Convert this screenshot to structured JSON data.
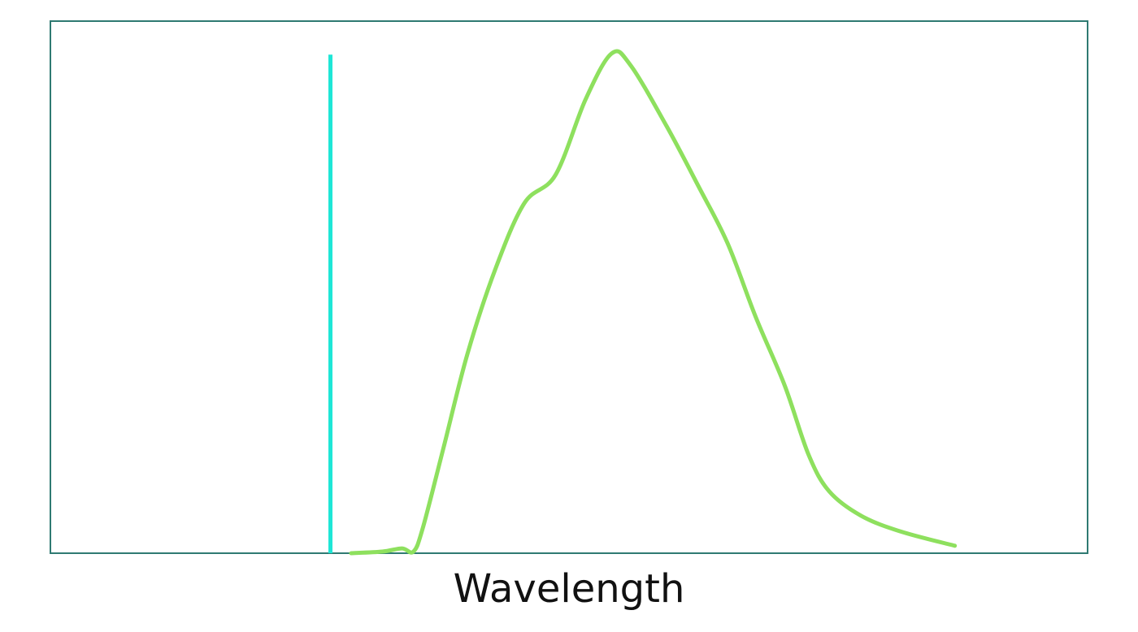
{
  "chart_data": {
    "type": "line",
    "xlabel": "Wavelength",
    "xlim": [
      0,
      100
    ],
    "ylim": [
      0,
      100
    ],
    "frame_color": "#2f7a72",
    "x": [
      29.0,
      32.0,
      33.9,
      35.0,
      35.9,
      37.9,
      40.2,
      42.9,
      45.7,
      48.7,
      51.6,
      54.1,
      55.9,
      59.4,
      62.5,
      65.3,
      68.0,
      70.8,
      73.1,
      75.1,
      78.2,
      82.1,
      87.2
    ],
    "series": [
      {
        "color": "#8ee05e",
        "values": [
          0,
          0.3,
          0.9,
          0.3,
          4.7,
          19.8,
          37.4,
          53.4,
          65.8,
          71.1,
          85.3,
          93.9,
          91.8,
          80.3,
          68.9,
          58.2,
          44.4,
          31.5,
          18.5,
          11.6,
          7.0,
          4.0,
          1.4
        ]
      }
    ],
    "markers": [
      {
        "x": 27.0,
        "y": 93.7,
        "color": "#1ee6d6"
      }
    ]
  }
}
